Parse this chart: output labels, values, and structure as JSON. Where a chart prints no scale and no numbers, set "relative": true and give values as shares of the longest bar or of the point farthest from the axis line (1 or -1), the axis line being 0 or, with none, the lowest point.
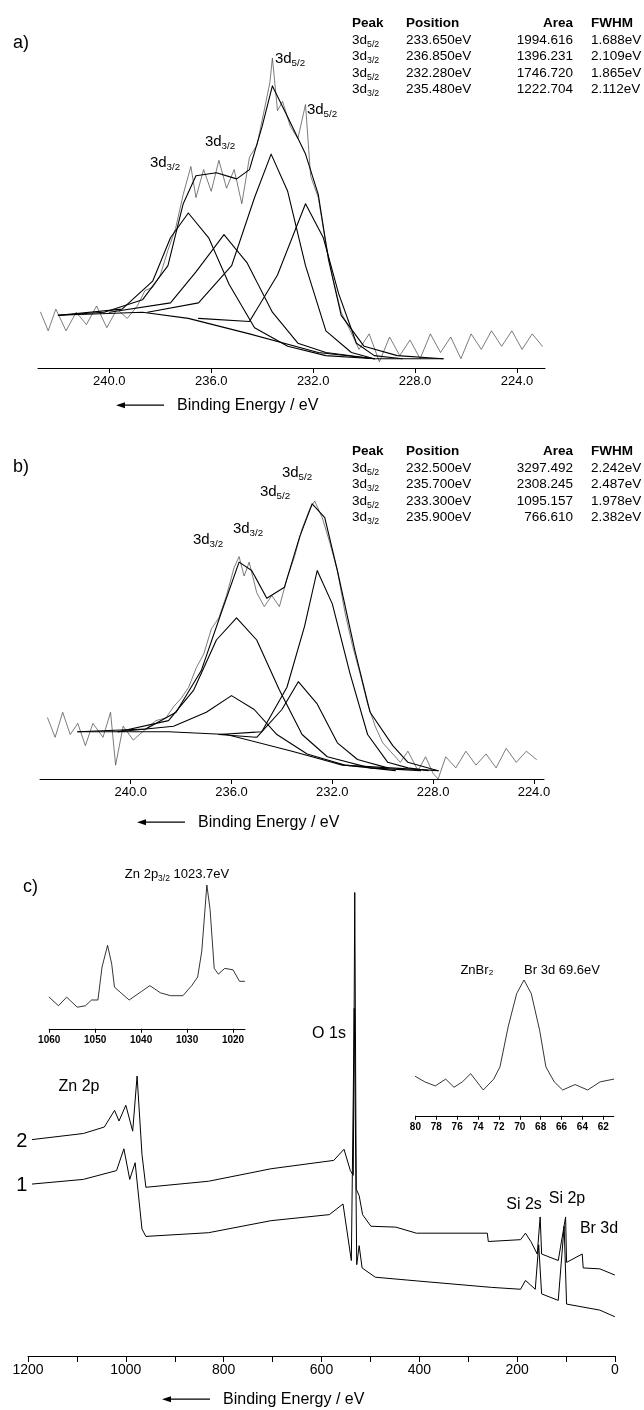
{
  "chart_data": [
    {
      "type": "line",
      "title": "a)",
      "xlabel": "Binding Energy / eV",
      "relative": true,
      "marker": "none",
      "xlim": [
        242.8,
        222.9
      ],
      "xticks": [
        {
          "value": 240,
          "label": "240.0"
        },
        {
          "value": 236,
          "label": "236.0"
        },
        {
          "value": 232,
          "label": "232.0"
        },
        {
          "value": 228,
          "label": "228.0"
        },
        {
          "value": 224,
          "label": "224.0"
        }
      ],
      "annotations": [
        "Peak\tPosition\tArea\tFWHM",
        "3d$_{5/2}$\t233.650eV\t1994.616\t1.688eV",
        "3d$_{3/2}$\t236.850eV\t1396.231\t2.109eV",
        "3d$_{5/2}$\t232.280eV\t1746.720\t1.865eV",
        "3d$_{3/2}$\t235.480eV\t1222.704\t2.112eV",
        "3d$_{3/2}$",
        "3d$_{3/2}$",
        "3d$_{5/2}$",
        "3d$_{5/2}$"
      ],
      "series": [
        {
          "color": "#444444",
          "x": [
            242.7,
            242.4,
            242.1,
            241.7,
            241.3,
            240.9,
            240.5,
            240.1,
            239.7,
            239.3,
            238.9,
            238.6,
            238.3,
            238.0,
            237.7,
            237.4,
            237.1,
            236.8,
            236.6,
            236.3,
            236.0,
            235.7,
            235.4,
            235.1,
            234.8,
            234.5,
            234.2,
            233.9,
            233.7,
            233.6,
            233.4,
            233.2,
            232.9,
            232.6,
            232.3,
            232.1,
            231.8,
            231.5,
            231.2,
            230.9,
            230.6,
            230.2,
            229.8,
            229.4,
            229.0,
            228.6,
            228.2,
            227.8,
            227.4,
            227.0,
            226.6,
            226.2,
            225.8,
            225.4,
            225.0,
            224.6,
            224.2,
            223.8,
            223.4,
            223.0
          ],
          "values": [
            0.18,
            0.12,
            0.19,
            0.12,
            0.18,
            0.14,
            0.2,
            0.13,
            0.19,
            0.16,
            0.2,
            0.25,
            0.26,
            0.3,
            0.38,
            0.45,
            0.56,
            0.65,
            0.55,
            0.64,
            0.57,
            0.67,
            0.58,
            0.64,
            0.53,
            0.68,
            0.72,
            0.84,
            0.92,
            1.0,
            0.83,
            0.86,
            0.78,
            0.74,
            0.85,
            0.62,
            0.55,
            0.4,
            0.28,
            0.18,
            0.13,
            0.06,
            0.11,
            0.02,
            0.1,
            0.04,
            0.09,
            0.03,
            0.11,
            0.05,
            0.1,
            0.03,
            0.11,
            0.06,
            0.12,
            0.07,
            0.12,
            0.06,
            0.11,
            0.07
          ]
        },
        {
          "color": "#000000",
          "x": [
            242.0,
            240.2,
            238.7,
            237.7,
            237.1,
            236.6,
            235.8,
            235.0,
            234.5,
            234.0,
            233.6,
            233.0,
            232.3,
            231.8,
            231.4,
            230.9,
            230.0,
            228.7,
            226.9
          ],
          "values": [
            0.17,
            0.18,
            0.22,
            0.33,
            0.53,
            0.62,
            0.63,
            0.61,
            0.64,
            0.78,
            0.91,
            0.81,
            0.69,
            0.56,
            0.35,
            0.17,
            0.07,
            0.04,
            0.03
          ]
        },
        {
          "color": "#000000",
          "x": [
            242.0,
            238.7,
            236.9,
            234.5,
            231.8,
            229.6,
            226.9
          ],
          "values": [
            0.17,
            0.18,
            0.16,
            0.11,
            0.05,
            0.03,
            0.03
          ]
        },
        {
          "color": "#000000",
          "x": [
            242.0,
            239.5,
            238.3,
            237.6,
            236.9,
            236.1,
            235.3,
            234.3,
            233.0,
            231.5,
            229.6
          ],
          "values": [
            0.17,
            0.19,
            0.28,
            0.42,
            0.5,
            0.42,
            0.27,
            0.13,
            0.07,
            0.04,
            0.03
          ]
        },
        {
          "color": "#000000",
          "x": [
            240.0,
            237.6,
            236.6,
            235.5,
            234.6,
            233.6,
            232.6,
            231.5,
            229.6
          ],
          "values": [
            0.18,
            0.21,
            0.31,
            0.43,
            0.34,
            0.18,
            0.08,
            0.05,
            0.03
          ]
        },
        {
          "color": "#000000",
          "x": [
            238.5,
            236.5,
            235.2,
            234.3,
            233.65,
            233.0,
            232.3,
            231.5,
            230.5,
            229.6
          ],
          "values": [
            0.18,
            0.21,
            0.33,
            0.55,
            0.69,
            0.57,
            0.33,
            0.12,
            0.05,
            0.03
          ]
        },
        {
          "color": "#000000",
          "x": [
            236.5,
            234.5,
            233.4,
            232.3,
            231.6,
            231.0,
            230.3,
            229.6,
            228.5
          ],
          "values": [
            0.16,
            0.15,
            0.3,
            0.53,
            0.42,
            0.24,
            0.08,
            0.04,
            0.03
          ]
        }
      ]
    },
    {
      "type": "line",
      "title": "b)",
      "xlabel": "Binding Energy / eV",
      "relative": true,
      "marker": "none",
      "xlim": [
        243.6,
        223.6
      ],
      "xticks": [
        {
          "value": 240,
          "label": "240.0"
        },
        {
          "value": 236,
          "label": "236.0"
        },
        {
          "value": 232,
          "label": "232.0"
        },
        {
          "value": 228,
          "label": "228.0"
        },
        {
          "value": 224,
          "label": "224.0"
        }
      ],
      "annotations": [
        "Peak\tPosition\tArea\tFWHM",
        "3d$_{5/2}$\t232.500eV\t3297.492\t2.242eV",
        "3d$_{3/2}$\t235.700eV\t2308.245\t2.487eV",
        "3d$_{5/2}$\t233.300eV\t1095.157\t1.978eV",
        "3d$_{3/2}$\t235.900eV\t766.610\t2.382eV",
        "3d$_{3/2}$",
        "3d$_{3/2}$",
        "3d$_{5/2}$",
        "3d$_{5/2}$"
      ],
      "series": [
        {
          "color": "#444444",
          "x": [
            243.3,
            243.0,
            242.7,
            242.4,
            242.1,
            241.8,
            241.5,
            241.1,
            240.8,
            240.6,
            240.3,
            239.9,
            239.4,
            239.0,
            238.6,
            238.3,
            238.0,
            237.7,
            237.4,
            237.1,
            236.8,
            236.5,
            236.2,
            235.9,
            235.7,
            235.5,
            235.3,
            235.0,
            234.7,
            234.4,
            234.1,
            233.8,
            233.5,
            233.2,
            232.9,
            232.7,
            232.4,
            232.1,
            231.8,
            231.5,
            231.2,
            230.9,
            230.6,
            230.3,
            230.0,
            229.7,
            229.3,
            229.0,
            228.6,
            228.3,
            228.0,
            227.8,
            227.5,
            227.1,
            226.7,
            226.3,
            225.9,
            225.5,
            225.1,
            224.7,
            224.3,
            223.9
          ],
          "values": [
            0.22,
            0.15,
            0.24,
            0.16,
            0.2,
            0.12,
            0.2,
            0.15,
            0.24,
            0.05,
            0.19,
            0.14,
            0.18,
            0.21,
            0.22,
            0.26,
            0.29,
            0.33,
            0.4,
            0.45,
            0.54,
            0.58,
            0.66,
            0.76,
            0.8,
            0.73,
            0.78,
            0.67,
            0.62,
            0.66,
            0.62,
            0.72,
            0.8,
            0.9,
            0.97,
            1.0,
            0.94,
            0.85,
            0.75,
            0.6,
            0.48,
            0.38,
            0.27,
            0.19,
            0.13,
            0.1,
            0.06,
            0.1,
            0.03,
            0.08,
            0.02,
            0.0,
            0.08,
            0.04,
            0.1,
            0.05,
            0.09,
            0.04,
            0.11,
            0.06,
            0.1,
            0.07
          ]
        },
        {
          "color": "#000000",
          "x": [
            242.1,
            239.4,
            238.2,
            237.2,
            236.4,
            235.7,
            235.2,
            234.6,
            233.9,
            233.3,
            232.8,
            232.3,
            231.8,
            231.1,
            230.5,
            229.6,
            229.0,
            227.8
          ],
          "values": [
            0.17,
            0.18,
            0.24,
            0.39,
            0.6,
            0.78,
            0.75,
            0.65,
            0.69,
            0.87,
            0.99,
            0.94,
            0.75,
            0.46,
            0.24,
            0.12,
            0.06,
            0.03
          ]
        },
        {
          "color": "#000000",
          "x": [
            242.1,
            238.5,
            236.2,
            233.6,
            231.6,
            227.8
          ],
          "values": [
            0.17,
            0.17,
            0.16,
            0.1,
            0.05,
            0.03
          ]
        },
        {
          "color": "#000000",
          "x": [
            240.5,
            238.5,
            237.5,
            236.6,
            235.8,
            235.0,
            234.1,
            233.2,
            232.2,
            230.5,
            228.5
          ],
          "values": [
            0.17,
            0.21,
            0.32,
            0.5,
            0.58,
            0.5,
            0.32,
            0.16,
            0.08,
            0.04,
            0.03
          ]
        },
        {
          "color": "#000000",
          "x": [
            240.5,
            238.3,
            237.0,
            236.0,
            235.1,
            234.2,
            233.0,
            231.5,
            229.5
          ],
          "values": [
            0.17,
            0.19,
            0.24,
            0.3,
            0.25,
            0.16,
            0.09,
            0.05,
            0.03
          ]
        },
        {
          "color": "#000000",
          "x": [
            236.5,
            235.0,
            234.0,
            233.35,
            232.6,
            231.8,
            231.0,
            229.8
          ],
          "values": [
            0.16,
            0.15,
            0.25,
            0.35,
            0.27,
            0.13,
            0.07,
            0.04
          ]
        },
        {
          "color": "#000000",
          "x": [
            236.5,
            234.8,
            233.8,
            233.1,
            232.6,
            232.0,
            231.3,
            230.6,
            229.8,
            229.0,
            228.2
          ],
          "values": [
            0.16,
            0.17,
            0.33,
            0.55,
            0.75,
            0.63,
            0.38,
            0.16,
            0.06,
            0.04,
            0.03
          ]
        }
      ]
    },
    {
      "type": "line",
      "title": "c)",
      "xlabel": "Binding Energy / eV",
      "relative": true,
      "marker": "none",
      "xlim": [
        1200,
        0
      ],
      "xticks": [
        1200,
        {
          "value": 1100,
          "label": null
        },
        1000,
        {
          "value": 900,
          "label": null
        },
        800,
        {
          "value": 700,
          "label": null
        },
        600,
        {
          "value": 500,
          "label": null
        },
        400,
        {
          "value": 300,
          "label": null
        },
        200,
        {
          "value": 100,
          "label": null
        },
        0
      ],
      "annotations": [
        "Zn 2p",
        "O 1s",
        "Si 2s",
        "Si 2p",
        "Br 3d"
      ],
      "series": [
        {
          "name": "2",
          "color": "#000000",
          "x": [
            1191,
            1087,
            1044,
            1023,
            1014,
            1000,
            986,
            977,
            967,
            959,
            831,
            703,
            575,
            554,
            541,
            535,
            532,
            529,
            523,
            516,
            499,
            448,
            406,
            261,
            259,
            193,
            183,
            172,
            159,
            153,
            150,
            116,
            101,
            99,
            67,
            65,
            31,
            1
          ],
          "values": [
            0.467,
            0.48,
            0.494,
            0.53,
            0.507,
            0.541,
            0.485,
            0.604,
            0.435,
            0.364,
            0.377,
            0.404,
            0.422,
            0.446,
            0.4,
            0.39,
            1.0,
            0.36,
            0.346,
            0.305,
            0.28,
            0.278,
            0.265,
            0.265,
            0.247,
            0.251,
            0.265,
            0.247,
            0.22,
            0.3,
            0.22,
            0.206,
            0.3,
            0.202,
            0.22,
            0.19,
            0.188,
            0.175
          ]
        },
        {
          "name": "1",
          "color": "#000000",
          "x": [
            1191,
            1087,
            1019,
            1004,
            992,
            981,
            967,
            959,
            831,
            703,
            584,
            556,
            539,
            533,
            528,
            523,
            517,
            490,
            405,
            252,
            193,
            183,
            163,
            156,
            150,
            116,
            104,
            99,
            31,
            1
          ],
          "values": [
            0.371,
            0.381,
            0.4,
            0.447,
            0.381,
            0.417,
            0.274,
            0.258,
            0.266,
            0.292,
            0.305,
            0.328,
            0.206,
            0.75,
            0.197,
            0.238,
            0.19,
            0.17,
            0.162,
            0.148,
            0.144,
            0.163,
            0.144,
            0.24,
            0.134,
            0.12,
            0.28,
            0.112,
            0.099,
            0.085
          ]
        }
      ]
    },
    {
      "type": "line",
      "relative": true,
      "marker": "none",
      "xlim": [
        1060,
        1017.4
      ],
      "xticks": [
        1060,
        1050,
        1040,
        1030,
        1020
      ],
      "annotations": [
        "Zn 2p$_{3/2}$ 1023.7eV"
      ],
      "series": [
        {
          "color": "#000000",
          "x": [
            1060,
            1058,
            1056.2,
            1053.9,
            1052.1,
            1050.8,
            1049.4,
            1048.5,
            1047.3,
            1046.4,
            1045.8,
            1044.4,
            1042.6,
            1039.9,
            1038.1,
            1035.8,
            1033.6,
            1030.9,
            1029.0,
            1027.7,
            1026.8,
            1025.7,
            1025.0,
            1024.1,
            1023.2,
            1021.8,
            1020.0,
            1018.6,
            1017.5
          ],
          "values": [
            0.22,
            0.16,
            0.22,
            0.15,
            0.16,
            0.2,
            0.2,
            0.43,
            0.58,
            0.45,
            0.29,
            0.25,
            0.2,
            0.26,
            0.3,
            0.25,
            0.23,
            0.23,
            0.3,
            0.36,
            0.54,
            1.0,
            0.83,
            0.42,
            0.38,
            0.42,
            0.41,
            0.33,
            0.33
          ]
        }
      ]
    },
    {
      "type": "line",
      "relative": true,
      "marker": "none",
      "xlim": [
        80,
        61
      ],
      "xticks": [
        80,
        78,
        76,
        74,
        72,
        70,
        68,
        66,
        64,
        62
      ],
      "annotations": [
        "ZnBr₂",
        "Br 3d 69.6eV"
      ],
      "series": [
        {
          "color": "#000000",
          "x": [
            80,
            79.1,
            78.1,
            77.1,
            76.3,
            75.5,
            74.7,
            73.5,
            72.5,
            71.9,
            71.1,
            70.3,
            69.6,
            68.9,
            68.1,
            67.5,
            66.7,
            65.9,
            64.7,
            63.5,
            62.3,
            61.0
          ],
          "values": [
            0.29,
            0.25,
            0.22,
            0.27,
            0.21,
            0.25,
            0.31,
            0.19,
            0.27,
            0.36,
            0.66,
            0.9,
            1.0,
            0.9,
            0.63,
            0.36,
            0.25,
            0.19,
            0.23,
            0.19,
            0.25,
            0.27
          ]
        }
      ]
    }
  ]
}
